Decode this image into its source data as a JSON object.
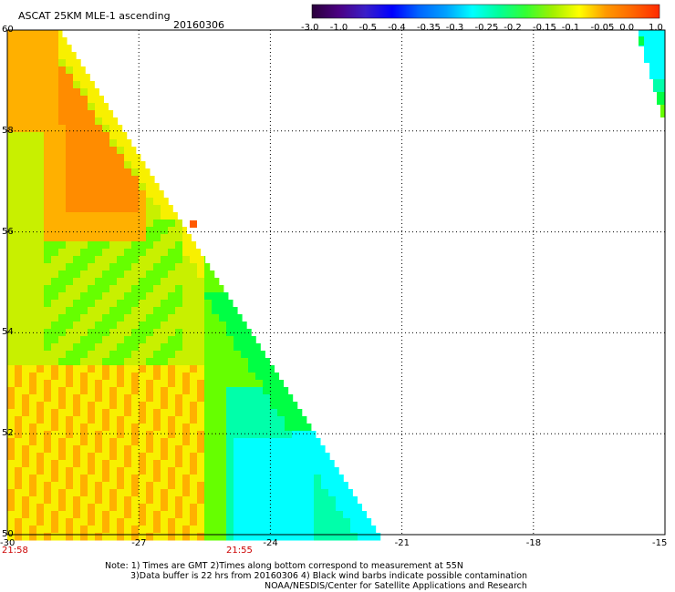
{
  "header": {
    "title": "ASCAT 25KM MLE-1 ascending",
    "date": "20160306"
  },
  "colorbar": {
    "tick_labels": [
      "-3.0",
      "-1.0",
      "-0.5",
      "-0.4",
      "-0.35",
      "-0.3",
      "-0.25",
      "-0.2",
      "-0.15",
      "-0.1",
      "-0.05",
      "0.0",
      "1.0"
    ],
    "colors": [
      "#2a003a",
      "#4b0082",
      "#3a1ec8",
      "#0000ff",
      "#0066ff",
      "#00a0ff",
      "#00ffff",
      "#00ff99",
      "#33ff33",
      "#a0f000",
      "#ffff00",
      "#ff9900",
      "#ff6600",
      "#ff2a00"
    ]
  },
  "axes": {
    "x_ticks": [
      "-30",
      "-27",
      "-24",
      "-21",
      "-18",
      "-15"
    ],
    "y_ticks": [
      "60",
      "58",
      "56",
      "54",
      "52",
      "50"
    ],
    "time_labels": [
      "21:58",
      "21:55"
    ]
  },
  "notes": [
    "Note: 1) Times are GMT 2)Times along bottom correspond to measurement at 55N",
    "3)Data buffer is 22 hrs from 20160306 4) Black wind barbs indicate possible contamination",
    "NOAA/NESDIS/Center for Satellite Applications and Research"
  ],
  "map": {
    "lon_range": [
      -30,
      -15
    ],
    "lat_range": [
      50,
      60
    ],
    "swath_colors": {
      "orange": "#ff8c00",
      "light_orange": "#ffb000",
      "yellow": "#f8f000",
      "yellow_green": "#c8f000",
      "green": "#66ff00",
      "bright_green": "#00ff44",
      "aqua_green": "#00ffaa",
      "cyan": "#00ffff",
      "red_orange": "#ff5a00"
    }
  }
}
